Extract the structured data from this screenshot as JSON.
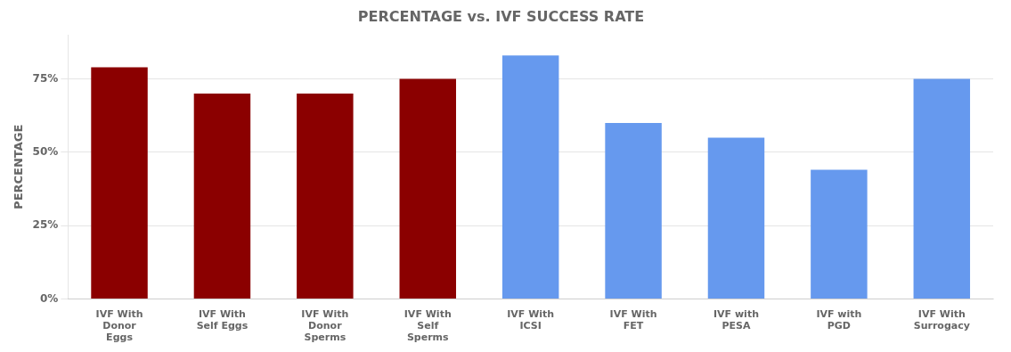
{
  "chart_data": {
    "type": "bar",
    "title": "PERCENTAGE vs. IVF SUCCESS RATE",
    "ylabel": "PERCENTAGE",
    "categories": [
      "IVF With\nDonor\nEggs",
      "IVF With\nSelf Eggs",
      "IVF With\nDonor\nSperms",
      "IVF With\nSelf\nSperms",
      "IVF With\nICSI",
      "IVF With\nFET",
      "IVF with\nPESA",
      "IVF with\nPGD",
      "IVF With\nSurrogacy"
    ],
    "values": [
      79,
      70,
      70,
      75,
      83,
      60,
      55,
      44,
      75
    ],
    "colors": [
      "#8B0000",
      "#8B0000",
      "#8B0000",
      "#8B0000",
      "#6699EE",
      "#6699EE",
      "#6699EE",
      "#6699EE",
      "#6699EE"
    ],
    "ylim": [
      0,
      90
    ],
    "yticks": [
      {
        "value": 0,
        "label": "0%"
      },
      {
        "value": 25,
        "label": "25%"
      },
      {
        "value": 50,
        "label": "50%"
      },
      {
        "value": 75,
        "label": "75%"
      }
    ],
    "grid": true
  }
}
